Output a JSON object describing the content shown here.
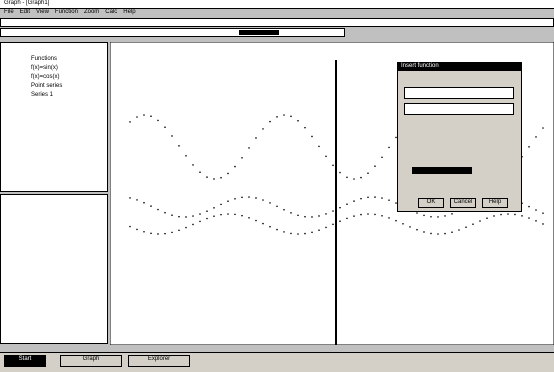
{
  "window": {
    "title": "Graph - [Graph1]"
  },
  "menu": [
    "File",
    "Edit",
    "View",
    "Function",
    "Zoom",
    "Calc",
    "Help"
  ],
  "panel": {
    "items": [
      "Functions",
      "f(x)=sin(x)",
      "f(x)=cos(x)",
      "Point series",
      "Series 1"
    ]
  },
  "dialog": {
    "title": "Insert function",
    "buttons": [
      "OK",
      "Cancel",
      "Help"
    ]
  },
  "taskbar": {
    "start": "Start",
    "tasks": [
      "Graph",
      "Explorer"
    ]
  }
}
